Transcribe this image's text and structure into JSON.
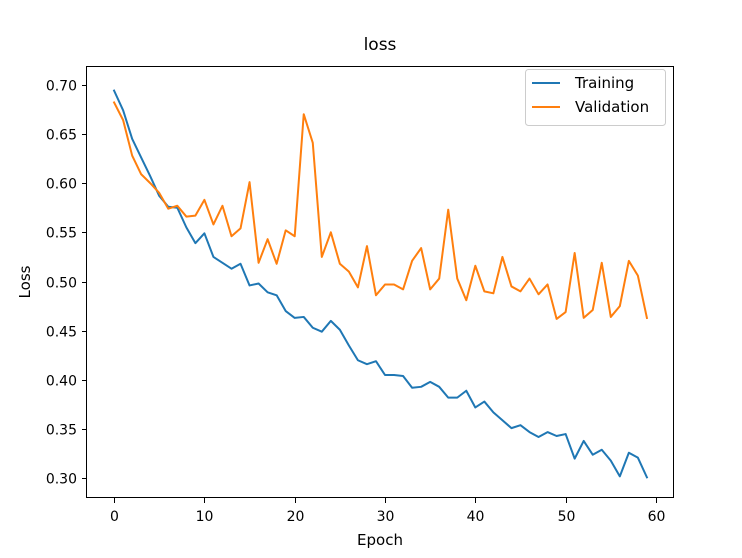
{
  "chart_data": {
    "type": "line",
    "title": "loss",
    "xlabel": "Epoch",
    "ylabel": "Loss",
    "xlim": [
      -3,
      62
    ],
    "ylim": [
      0.28,
      0.718
    ],
    "xticks": [
      0,
      10,
      20,
      30,
      40,
      50,
      60
    ],
    "xtick_labels": [
      "0",
      "10",
      "20",
      "30",
      "40",
      "50",
      "60"
    ],
    "yticks": [
      0.3,
      0.35,
      0.4,
      0.45,
      0.5,
      0.55,
      0.6,
      0.65,
      0.7
    ],
    "ytick_labels": [
      "0.30",
      "0.35",
      "0.40",
      "0.45",
      "0.50",
      "0.55",
      "0.60",
      "0.65",
      "0.70"
    ],
    "grid": false,
    "legend_position": "top-right",
    "series": [
      {
        "name": "Training",
        "color": "#1f77b4",
        "values": [
          0.694,
          0.674,
          0.645,
          0.626,
          0.607,
          0.587,
          0.576,
          0.575,
          0.555,
          0.539,
          0.549,
          0.525,
          0.519,
          0.513,
          0.518,
          0.496,
          0.498,
          0.489,
          0.486,
          0.47,
          0.463,
          0.464,
          0.453,
          0.449,
          0.46,
          0.451,
          0.435,
          0.42,
          0.416,
          0.419,
          0.405,
          0.405,
          0.404,
          0.392,
          0.393,
          0.398,
          0.393,
          0.382,
          0.382,
          0.389,
          0.372,
          0.378,
          0.367,
          0.359,
          0.351,
          0.354,
          0.347,
          0.342,
          0.347,
          0.343,
          0.345,
          0.32,
          0.338,
          0.324,
          0.329,
          0.318,
          0.302,
          0.326,
          0.321,
          0.301
        ]
      },
      {
        "name": "Validation",
        "color": "#ff7f0e",
        "values": [
          0.682,
          0.664,
          0.628,
          0.609,
          0.6,
          0.59,
          0.574,
          0.577,
          0.566,
          0.567,
          0.583,
          0.558,
          0.577,
          0.546,
          0.554,
          0.601,
          0.519,
          0.543,
          0.518,
          0.552,
          0.546,
          0.67,
          0.641,
          0.525,
          0.55,
          0.518,
          0.51,
          0.494,
          0.536,
          0.486,
          0.497,
          0.497,
          0.492,
          0.521,
          0.534,
          0.492,
          0.503,
          0.573,
          0.503,
          0.481,
          0.516,
          0.49,
          0.488,
          0.525,
          0.495,
          0.49,
          0.503,
          0.487,
          0.497,
          0.462,
          0.469,
          0.529,
          0.463,
          0.471,
          0.519,
          0.464,
          0.475,
          0.521,
          0.506,
          0.463
        ]
      }
    ]
  }
}
